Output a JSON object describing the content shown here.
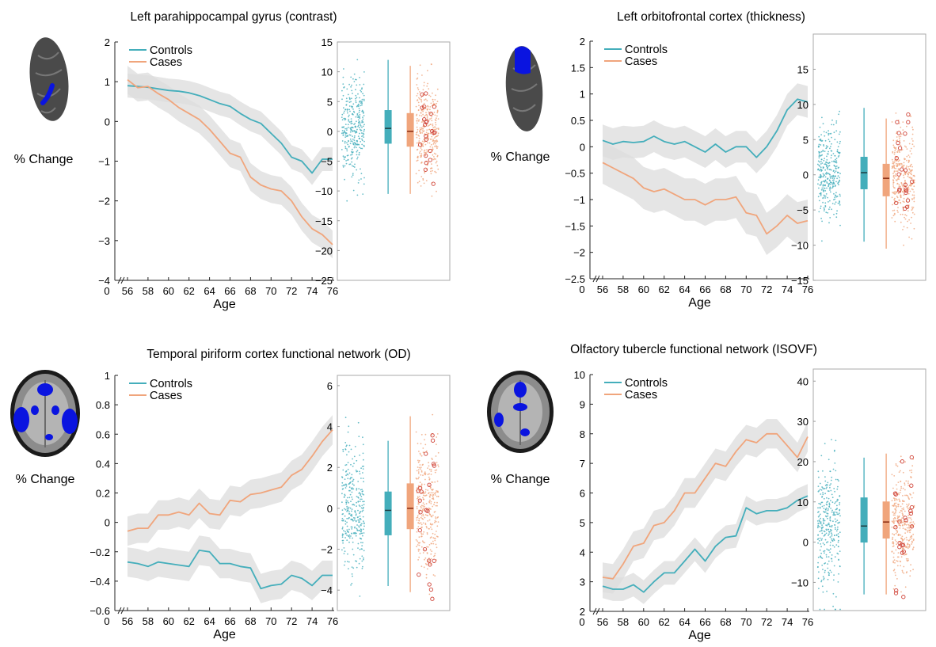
{
  "colors": {
    "controls": "#44aebb",
    "cases": "#f0a57c",
    "ci": "#dcdcdc",
    "axis": "#222222",
    "brain_dark": "#4a4a4a",
    "highlight": "#0a14e0"
  },
  "ylabel_text": "% Change",
  "chart_data": [
    {
      "type": "line",
      "title": "Left parahippocampal gyrus (contrast)",
      "xlabel": "Age",
      "ylabel": "% Change",
      "x": [
        56,
        57,
        58,
        59,
        60,
        61,
        62,
        63,
        64,
        65,
        66,
        67,
        68,
        69,
        70,
        71,
        72,
        73,
        74,
        75,
        76
      ],
      "xticks": [
        0,
        56,
        58,
        60,
        62,
        64,
        66,
        68,
        70,
        72,
        74,
        76
      ],
      "ylim": [
        -4,
        2
      ],
      "yticks": [
        -4,
        -3,
        -2,
        -1,
        0,
        1,
        2
      ],
      "legend": [
        "Controls",
        "Cases"
      ],
      "series": [
        {
          "name": "Controls",
          "values": [
            0.9,
            0.88,
            0.86,
            0.82,
            0.78,
            0.76,
            0.72,
            0.65,
            0.55,
            0.45,
            0.38,
            0.2,
            0.05,
            -0.05,
            -0.3,
            -0.55,
            -0.9,
            -1.0,
            -1.3,
            -0.95,
            -0.95
          ],
          "ci": 0.3
        },
        {
          "name": "Cases",
          "values": [
            1.05,
            0.85,
            0.88,
            0.7,
            0.55,
            0.35,
            0.2,
            0.05,
            -0.2,
            -0.5,
            -0.8,
            -0.9,
            -1.4,
            -1.6,
            -1.7,
            -1.75,
            -2.0,
            -2.4,
            -2.7,
            -2.85,
            -3.1
          ],
          "ci": 0.35
        }
      ],
      "box_panel": {
        "ylim": [
          -25,
          15
        ],
        "yticks": [
          -25,
          -20,
          -15,
          -10,
          -5,
          0,
          5,
          10,
          15
        ],
        "groups": [
          {
            "name": "Controls",
            "q1": -2,
            "median": 0.5,
            "q3": 3.5,
            "whisker_low": -10.5,
            "whisker_high": 12
          },
          {
            "name": "Cases",
            "q1": -2.5,
            "median": 0,
            "q3": 3,
            "whisker_low": -10.5,
            "whisker_high": 11
          }
        ]
      }
    },
    {
      "type": "line",
      "title": "Left orbitofrontal cortex (thickness)",
      "xlabel": "Age",
      "ylabel": "% Change",
      "x": [
        56,
        57,
        58,
        59,
        60,
        61,
        62,
        63,
        64,
        65,
        66,
        67,
        68,
        69,
        70,
        71,
        72,
        73,
        74,
        75,
        76
      ],
      "xticks": [
        0,
        56,
        58,
        60,
        62,
        64,
        66,
        68,
        70,
        72,
        74,
        76
      ],
      "ylim": [
        -2.5,
        2
      ],
      "yticks": [
        -2.5,
        -2,
        -1.5,
        -1,
        -0.5,
        0,
        0.5,
        1,
        1.5,
        2
      ],
      "legend": [
        "Controls",
        "Cases"
      ],
      "series": [
        {
          "name": "Controls",
          "values": [
            0.12,
            0.05,
            0.1,
            0.08,
            0.1,
            0.2,
            0.1,
            0.05,
            0.1,
            0.0,
            -0.1,
            0.05,
            -0.1,
            0.0,
            0.0,
            -0.2,
            0.0,
            0.3,
            0.7,
            0.9,
            0.85
          ],
          "ci": 0.3
        },
        {
          "name": "Cases",
          "values": [
            -0.3,
            -0.4,
            -0.5,
            -0.6,
            -0.78,
            -0.85,
            -0.8,
            -0.9,
            -1.0,
            -1.0,
            -1.1,
            -1.0,
            -1.0,
            -0.95,
            -1.25,
            -1.3,
            -1.65,
            -1.5,
            -1.3,
            -1.45,
            -1.4
          ],
          "ci": 0.4
        }
      ],
      "box_panel": {
        "ylim": [
          -15,
          20
        ],
        "yticks": [
          -15,
          -10,
          -5,
          0,
          5,
          10,
          15
        ],
        "groups": [
          {
            "name": "Controls",
            "q1": -2,
            "median": 0.3,
            "q3": 2.5,
            "whisker_low": -9.5,
            "whisker_high": 9.5
          },
          {
            "name": "Cases",
            "q1": -3,
            "median": -0.5,
            "q3": 1.5,
            "whisker_low": -10.5,
            "whisker_high": 8
          }
        ]
      }
    },
    {
      "type": "line",
      "title": "Temporal piriform cortex functional network (OD)",
      "xlabel": "Age",
      "ylabel": "% Change",
      "x": [
        56,
        57,
        58,
        59,
        60,
        61,
        62,
        63,
        64,
        65,
        66,
        67,
        68,
        69,
        70,
        71,
        72,
        73,
        74,
        75,
        76
      ],
      "xticks": [
        0,
        56,
        58,
        60,
        62,
        64,
        66,
        68,
        70,
        72,
        74,
        76
      ],
      "ylim": [
        -0.6,
        1
      ],
      "yticks": [
        -0.6,
        -0.4,
        -0.2,
        0,
        0.2,
        0.4,
        0.6,
        0.8,
        1
      ],
      "legend": [
        "Controls",
        "Cases"
      ],
      "series": [
        {
          "name": "Controls",
          "values": [
            -0.27,
            -0.28,
            -0.3,
            -0.27,
            -0.28,
            -0.29,
            -0.3,
            -0.19,
            -0.2,
            -0.28,
            -0.28,
            -0.3,
            -0.31,
            -0.45,
            -0.43,
            -0.42,
            -0.36,
            -0.38,
            -0.43,
            -0.36,
            -0.36
          ],
          "ci": 0.1
        },
        {
          "name": "Cases",
          "values": [
            -0.06,
            -0.04,
            -0.04,
            0.05,
            0.05,
            0.07,
            0.05,
            0.13,
            0.06,
            0.05,
            0.15,
            0.14,
            0.19,
            0.2,
            0.22,
            0.24,
            0.32,
            0.36,
            0.45,
            0.55,
            0.63
          ],
          "ci": 0.1
        }
      ],
      "box_panel": {
        "ylim": [
          -5,
          6.5
        ],
        "yticks": [
          -4,
          -2,
          0,
          2,
          4,
          6
        ],
        "groups": [
          {
            "name": "Controls",
            "q1": -1.3,
            "median": -0.1,
            "q3": 0.8,
            "whisker_low": -3.8,
            "whisker_high": 3.3
          },
          {
            "name": "Cases",
            "q1": -1.0,
            "median": 0.0,
            "q3": 1.2,
            "whisker_low": -4.1,
            "whisker_high": 4.5
          }
        ]
      }
    },
    {
      "type": "line",
      "title": "Olfactory tubercle functional network (ISOVF)",
      "xlabel": "Age",
      "ylabel": "% Change",
      "x": [
        56,
        57,
        58,
        59,
        60,
        61,
        62,
        63,
        64,
        65,
        66,
        67,
        68,
        69,
        70,
        71,
        72,
        73,
        74,
        75,
        76
      ],
      "xticks": [
        0,
        56,
        58,
        60,
        62,
        64,
        66,
        68,
        70,
        72,
        74,
        76
      ],
      "ylim": [
        2,
        10
      ],
      "yticks": [
        2,
        3,
        4,
        5,
        6,
        7,
        8,
        9,
        10
      ],
      "legend": [
        "Controls",
        "Cases"
      ],
      "series": [
        {
          "name": "Controls",
          "values": [
            2.85,
            2.75,
            2.75,
            2.9,
            2.65,
            3.0,
            3.3,
            3.3,
            3.7,
            4.1,
            3.7,
            4.2,
            4.5,
            4.55,
            5.5,
            5.3,
            5.4,
            5.4,
            5.5,
            5.75,
            5.9
          ],
          "ci": 0.4
        },
        {
          "name": "Cases",
          "values": [
            3.15,
            3.1,
            3.6,
            4.2,
            4.3,
            4.9,
            5.0,
            5.4,
            6.0,
            6.0,
            6.5,
            7.0,
            6.9,
            7.4,
            7.8,
            7.7,
            8.0,
            8.0,
            7.6,
            7.2,
            7.9
          ],
          "ci": 0.5
        }
      ],
      "box_panel": {
        "ylim": [
          -17,
          43
        ],
        "yticks": [
          -10,
          0,
          10,
          20,
          30,
          40
        ],
        "groups": [
          {
            "name": "Controls",
            "q1": 0,
            "median": 4,
            "q3": 11,
            "whisker_low": -13,
            "whisker_high": 21
          },
          {
            "name": "Cases",
            "q1": 1,
            "median": 5,
            "q3": 10,
            "whisker_low": -13,
            "whisker_high": 22
          }
        ]
      }
    }
  ]
}
